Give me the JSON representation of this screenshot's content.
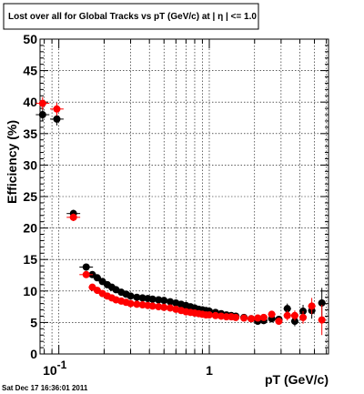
{
  "chart_data": {
    "type": "scatter",
    "title": "Lost over all for Global Tracks vs pT (GeV/c) at |  η | <= 1.0",
    "xlabel": "pT (GeV/c)",
    "ylabel": "Efficiency (%)",
    "xscale": "log",
    "xlim": [
      0.075,
      6.2
    ],
    "ylim": [
      0,
      50
    ],
    "grid": true,
    "yticks": [
      "0",
      "5",
      "10",
      "15",
      "20",
      "25",
      "30",
      "35",
      "40",
      "45",
      "50"
    ],
    "xticks": [
      {
        "value": 0.1,
        "base": "10",
        "exp": "-1"
      },
      {
        "value": 1,
        "label": "1"
      }
    ],
    "series": [
      {
        "color": "#000000",
        "points": [
          {
            "x": 0.078,
            "y": 38.0,
            "yerr": 1.0
          },
          {
            "x": 0.097,
            "y": 37.3,
            "yerr": 1.0
          },
          {
            "x": 0.125,
            "y": 22.3,
            "yerr": 0.6
          },
          {
            "x": 0.152,
            "y": 13.8,
            "yerr": 0.4
          },
          {
            "x": 0.167,
            "y": 12.6
          },
          {
            "x": 0.18,
            "y": 12.1
          },
          {
            "x": 0.195,
            "y": 11.5
          },
          {
            "x": 0.21,
            "y": 11.0
          },
          {
            "x": 0.225,
            "y": 10.6
          },
          {
            "x": 0.24,
            "y": 10.2
          },
          {
            "x": 0.26,
            "y": 9.8
          },
          {
            "x": 0.28,
            "y": 9.5
          },
          {
            "x": 0.3,
            "y": 9.2
          },
          {
            "x": 0.33,
            "y": 9.0
          },
          {
            "x": 0.36,
            "y": 8.9
          },
          {
            "x": 0.39,
            "y": 8.8
          },
          {
            "x": 0.42,
            "y": 8.7
          },
          {
            "x": 0.46,
            "y": 8.6
          },
          {
            "x": 0.5,
            "y": 8.5
          },
          {
            "x": 0.55,
            "y": 8.3
          },
          {
            "x": 0.6,
            "y": 8.1
          },
          {
            "x": 0.65,
            "y": 7.9
          },
          {
            "x": 0.7,
            "y": 7.7
          },
          {
            "x": 0.75,
            "y": 7.5
          },
          {
            "x": 0.8,
            "y": 7.3
          },
          {
            "x": 0.85,
            "y": 7.1
          },
          {
            "x": 0.9,
            "y": 7.0
          },
          {
            "x": 0.95,
            "y": 6.9
          },
          {
            "x": 1.0,
            "y": 6.8
          },
          {
            "x": 1.1,
            "y": 6.6
          },
          {
            "x": 1.2,
            "y": 6.4
          },
          {
            "x": 1.3,
            "y": 6.2
          },
          {
            "x": 1.4,
            "y": 6.1
          },
          {
            "x": 1.5,
            "y": 6.0
          },
          {
            "x": 1.7,
            "y": 5.8
          },
          {
            "x": 1.9,
            "y": 5.6
          },
          {
            "x": 2.1,
            "y": 5.2
          },
          {
            "x": 2.3,
            "y": 5.3
          },
          {
            "x": 2.6,
            "y": 5.6
          },
          {
            "x": 2.9,
            "y": 5.5
          },
          {
            "x": 3.3,
            "y": 7.2,
            "yerr": 0.8
          },
          {
            "x": 3.7,
            "y": 5.2,
            "yerr": 0.8
          },
          {
            "x": 4.2,
            "y": 6.8,
            "yerr": 1.0
          },
          {
            "x": 4.8,
            "y": 6.9,
            "yerr": 1.3
          },
          {
            "x": 5.6,
            "y": 8.1,
            "yerr": 2.4
          }
        ]
      },
      {
        "color": "#ff0000",
        "points": [
          {
            "x": 0.078,
            "y": 39.8,
            "yerr": 1.0
          },
          {
            "x": 0.097,
            "y": 38.9,
            "yerr": 1.0
          },
          {
            "x": 0.125,
            "y": 21.7,
            "yerr": 0.6
          },
          {
            "x": 0.152,
            "y": 12.6,
            "yerr": 0.4
          },
          {
            "x": 0.167,
            "y": 10.6
          },
          {
            "x": 0.18,
            "y": 10.1
          },
          {
            "x": 0.195,
            "y": 9.6
          },
          {
            "x": 0.21,
            "y": 9.2
          },
          {
            "x": 0.225,
            "y": 8.9
          },
          {
            "x": 0.24,
            "y": 8.6
          },
          {
            "x": 0.26,
            "y": 8.4
          },
          {
            "x": 0.28,
            "y": 8.2
          },
          {
            "x": 0.3,
            "y": 8.0
          },
          {
            "x": 0.33,
            "y": 7.9
          },
          {
            "x": 0.36,
            "y": 7.8
          },
          {
            "x": 0.39,
            "y": 7.7
          },
          {
            "x": 0.42,
            "y": 7.6
          },
          {
            "x": 0.46,
            "y": 7.5
          },
          {
            "x": 0.5,
            "y": 7.4
          },
          {
            "x": 0.55,
            "y": 7.3
          },
          {
            "x": 0.6,
            "y": 7.1
          },
          {
            "x": 0.65,
            "y": 6.9
          },
          {
            "x": 0.7,
            "y": 6.7
          },
          {
            "x": 0.75,
            "y": 6.6
          },
          {
            "x": 0.8,
            "y": 6.5
          },
          {
            "x": 0.85,
            "y": 6.4
          },
          {
            "x": 0.9,
            "y": 6.3
          },
          {
            "x": 0.95,
            "y": 6.2
          },
          {
            "x": 1.0,
            "y": 6.2
          },
          {
            "x": 1.1,
            "y": 6.1
          },
          {
            "x": 1.2,
            "y": 6.0
          },
          {
            "x": 1.3,
            "y": 5.9
          },
          {
            "x": 1.4,
            "y": 5.9
          },
          {
            "x": 1.5,
            "y": 5.8
          },
          {
            "x": 1.7,
            "y": 5.7
          },
          {
            "x": 1.9,
            "y": 5.6
          },
          {
            "x": 2.1,
            "y": 5.7
          },
          {
            "x": 2.3,
            "y": 5.8
          },
          {
            "x": 2.6,
            "y": 6.3
          },
          {
            "x": 2.9,
            "y": 5.2
          },
          {
            "x": 3.3,
            "y": 6.1,
            "yerr": 0.8
          },
          {
            "x": 3.7,
            "y": 6.1,
            "yerr": 0.8
          },
          {
            "x": 4.2,
            "y": 5.8,
            "yerr": 1.0
          },
          {
            "x": 4.8,
            "y": 7.6,
            "yerr": 1.3
          },
          {
            "x": 5.6,
            "y": 5.4,
            "yerr": 2.4
          }
        ]
      }
    ]
  },
  "footer": {
    "timestamp": "Sat Dec 17 16:36:01 2011"
  }
}
